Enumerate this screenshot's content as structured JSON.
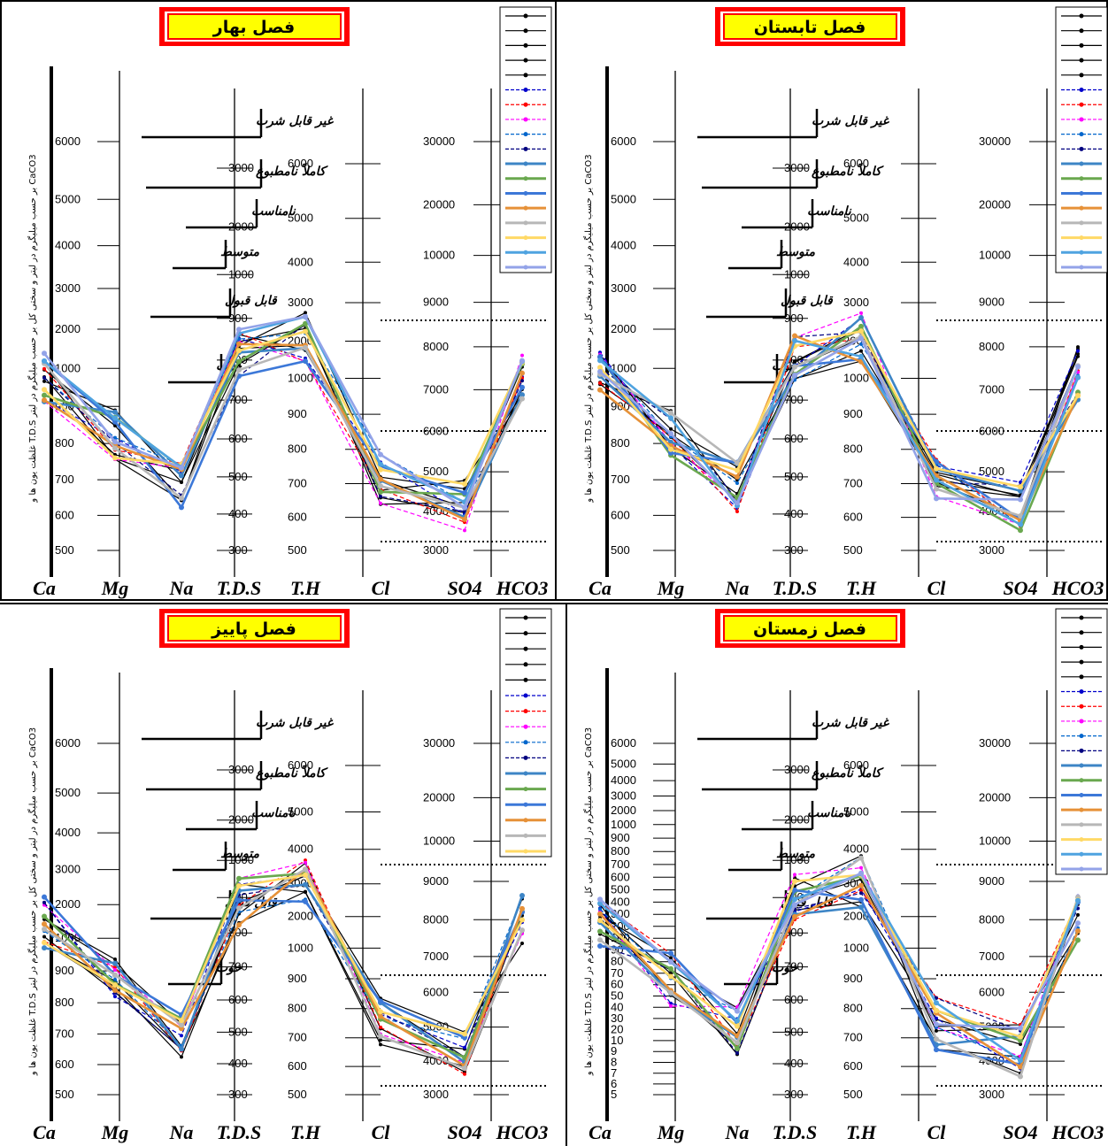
{
  "chart_data": [
    {
      "type": "line",
      "title": "فصل بهار",
      "ylabel": "غلظت یون ها و T.D.S بر حسب میلیگرم در لیتر و سختی کل بر حسب میلیگرم در لیتر CaCO3",
      "categories": [
        "Ca",
        "Mg",
        "Na",
        "T.D.S",
        "T.H",
        "Cl",
        "SO4",
        "HCO3"
      ],
      "quality_classes": [
        "غیر قابل شرب",
        "کاملاً نامطبوع",
        "نامناسب",
        "متوسط",
        "قابل قبول",
        "خوب"
      ],
      "axis_ticks": [
        [
          "6000",
          "5000",
          "4000",
          "3000",
          "2000",
          "1000",
          "900",
          "800",
          "700",
          "600",
          "500"
        ],
        [
          "3000",
          "2000",
          "1000",
          "900",
          "800",
          "700",
          "600",
          "500",
          "400",
          "300"
        ],
        [
          "6000",
          "5000",
          "4000",
          "3000",
          "2000",
          "1000",
          "900",
          "800",
          "700",
          "600",
          "500"
        ],
        [
          "30000",
          "20000",
          "10000",
          "9000",
          "8000",
          "7000",
          "6000",
          "5000",
          "4000",
          "3000"
        ]
      ],
      "series_count": 18,
      "legend_position": "top-right"
    },
    {
      "type": "line",
      "title": "فصل تابستان",
      "ylabel": "غلظت یون ها و T.D.S بر حسب میلیگرم در لیتر و سختی کل بر حسب میلیگرم در لیتر CaCO3",
      "categories": [
        "Ca",
        "Mg",
        "Na",
        "T.D.S",
        "T.H",
        "Cl",
        "SO4",
        "HCO3"
      ],
      "quality_classes": [
        "غیر قابل شرب",
        "کاملاً نامطبوع",
        "نامناسب",
        "متوسط",
        "قابل قبول",
        "خوب"
      ],
      "axis_ticks": [
        [
          "6000",
          "5000",
          "4000",
          "3000",
          "2000",
          "1000",
          "900",
          "800",
          "700",
          "600",
          "500"
        ],
        [
          "3000",
          "2000",
          "1000",
          "900",
          "800",
          "700",
          "600",
          "500",
          "400",
          "300"
        ],
        [
          "6000",
          "5000",
          "4000",
          "3000",
          "2000",
          "1000",
          "900",
          "800",
          "700",
          "600",
          "500"
        ],
        [
          "30000",
          "20000",
          "10000",
          "9000",
          "8000",
          "7000",
          "6000",
          "5000",
          "4000",
          "3000"
        ]
      ],
      "series_count": 18,
      "legend_position": "top-right"
    },
    {
      "type": "line",
      "title": "فصل پاییز",
      "ylabel": "غلظت یون ها و T.D.S بر حسب میلیگرم در لیتر و سختی کل بر حسب میلیگرم در لیتر CaCO3",
      "categories": [
        "Ca",
        "Mg",
        "Na",
        "T.D.S",
        "T.H",
        "Cl",
        "SO4",
        "HCO3"
      ],
      "quality_classes": [
        "غیر قابل شرب",
        "کاملاً نامطبوع",
        "نامناسب",
        "متوسط",
        "قابل قبول",
        "خوب"
      ],
      "axis_ticks": [
        [
          "6000",
          "5000",
          "4000",
          "3000",
          "2000",
          "1000",
          "900",
          "800",
          "700",
          "600",
          "500"
        ],
        [
          "3000",
          "2000",
          "1000",
          "900",
          "800",
          "700",
          "600",
          "500",
          "400",
          "300"
        ],
        [
          "6000",
          "5000",
          "4000",
          "3000",
          "2000",
          "1000",
          "900",
          "800",
          "700",
          "600",
          "500"
        ],
        [
          "30000",
          "20000",
          "10000",
          "9000",
          "8000",
          "7000",
          "6000",
          "5000",
          "4000",
          "3000"
        ]
      ],
      "series_count": 16,
      "legend_position": "top-right"
    },
    {
      "type": "line",
      "title": "فصل زمستان",
      "ylabel": "غلظت یون ها و T.D.S بر حسب میلیگرم در لیتر و سختی کل بر حسب میلیگرم در لیتر CaCO3",
      "categories": [
        "Ca",
        "Mg",
        "Na",
        "T.D.S",
        "T.H",
        "Cl",
        "SO4",
        "HCO3"
      ],
      "quality_classes": [
        "غیر قابل شرب",
        "کاملاً نامطبوع",
        "نامناسب",
        "متوسط",
        "قابل قبول",
        "خوب"
      ],
      "axis_ticks": [
        [
          "6000",
          "5000",
          "4000",
          "3000",
          "2000",
          "1000",
          "900",
          "800",
          "700",
          "600",
          "500",
          "400",
          "300",
          "200",
          "100",
          "90",
          "80",
          "70",
          "60",
          "50",
          "40",
          "30",
          "20",
          "10",
          "9",
          "8",
          "7",
          "6",
          "5"
        ],
        [
          "3000",
          "2000",
          "1000",
          "900",
          "800",
          "700",
          "600",
          "500",
          "400",
          "300"
        ],
        [
          "6000",
          "5000",
          "4000",
          "3000",
          "2000",
          "1000",
          "900",
          "800",
          "700",
          "600",
          "500"
        ],
        [
          "30000",
          "20000",
          "10000",
          "9000",
          "8000",
          "7000",
          "6000",
          "5000",
          "4000",
          "3000"
        ]
      ],
      "series_count": 18,
      "legend_position": "top-right"
    }
  ],
  "colors": {
    "title_bg": "#ffff00",
    "title_border": "#ff0000",
    "series": [
      "#000000",
      "#000000",
      "#000000",
      "#000000",
      "#000000",
      "#0000cc",
      "#ff0000",
      "#ff00ff",
      "#0066cc",
      "#000080",
      "#3d85c6",
      "#6aa84f",
      "#3c78d8",
      "#e69138",
      "#b7b7b7",
      "#ffd966",
      "#4fa3e0",
      "#93a3e8"
    ]
  }
}
